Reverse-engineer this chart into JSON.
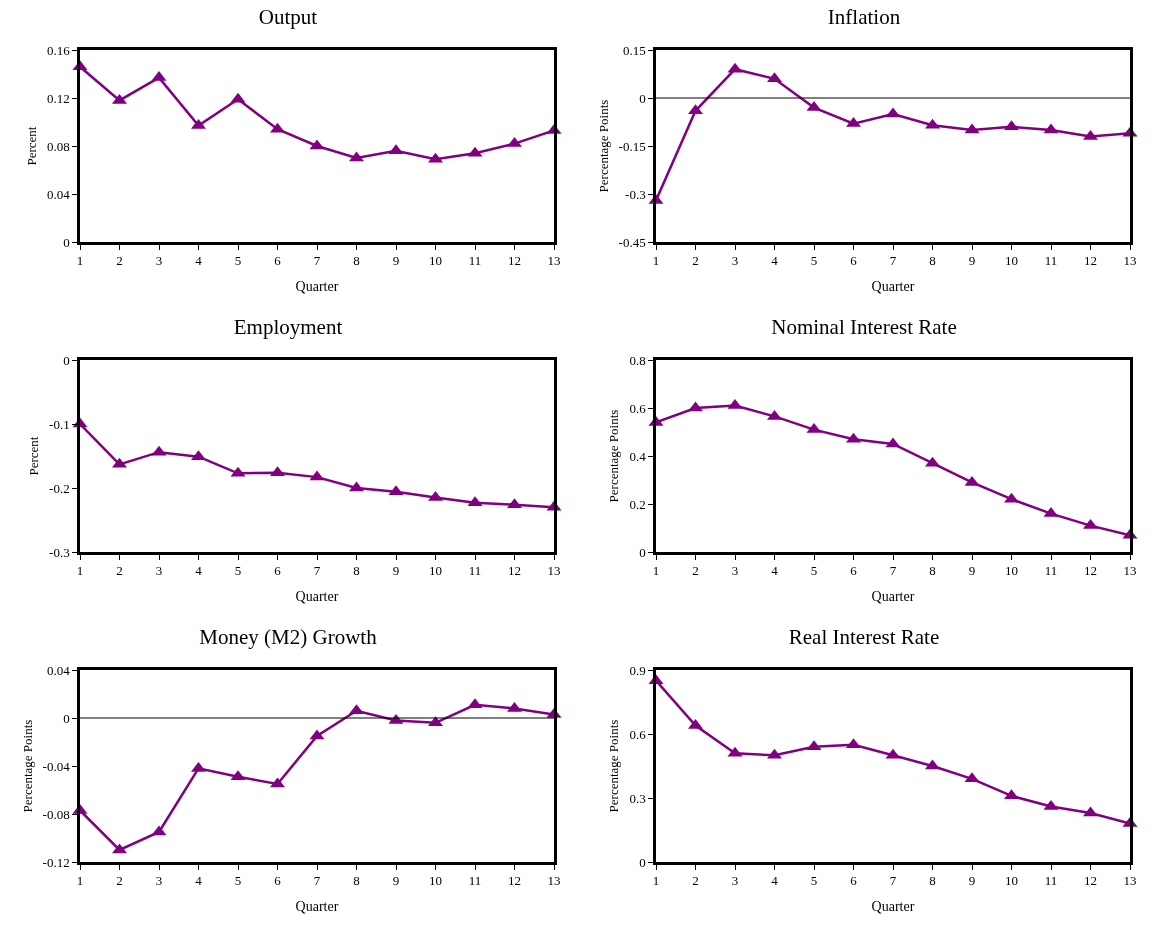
{
  "chart_data": [
    {
      "type": "line",
      "title": "Output",
      "xlabel": "Quarter",
      "ylabel": "Percent",
      "x": [
        1,
        2,
        3,
        4,
        5,
        6,
        7,
        8,
        9,
        10,
        11,
        12,
        13
      ],
      "xlim": [
        1,
        13
      ],
      "xticks": [
        1,
        2,
        3,
        4,
        5,
        6,
        7,
        8,
        9,
        10,
        11,
        12,
        13
      ],
      "ylim": [
        0,
        0.16
      ],
      "yticks": [
        0,
        0.04,
        0.08,
        0.12,
        0.16
      ],
      "grid": false,
      "marker": "triangle",
      "line_style": "solid",
      "series": [
        {
          "color": "#800080",
          "values": [
            0.146,
            0.118,
            0.137,
            0.097,
            0.119,
            0.094,
            0.08,
            0.07,
            0.076,
            0.069,
            0.074,
            0.082,
            0.093
          ]
        }
      ]
    },
    {
      "type": "line",
      "title": "Inflation",
      "xlabel": "Quarter",
      "ylabel": "Percentage Points",
      "x": [
        1,
        2,
        3,
        4,
        5,
        6,
        7,
        8,
        9,
        10,
        11,
        12,
        13
      ],
      "xlim": [
        1,
        13
      ],
      "xticks": [
        1,
        2,
        3,
        4,
        5,
        6,
        7,
        8,
        9,
        10,
        11,
        12,
        13
      ],
      "ylim": [
        -0.45,
        0.15
      ],
      "yticks": [
        -0.45,
        -0.3,
        -0.15,
        0,
        0.15
      ],
      "grid": false,
      "marker": "triangle",
      "line_style": "solid",
      "ref_lines": [
        {
          "axis": "y",
          "value": 0,
          "color": "#000000"
        }
      ],
      "series": [
        {
          "color": "#800080",
          "values": [
            -0.32,
            -0.04,
            0.09,
            0.06,
            -0.03,
            -0.08,
            -0.05,
            -0.085,
            -0.1,
            -0.09,
            -0.1,
            -0.12,
            -0.11
          ]
        }
      ]
    },
    {
      "type": "line",
      "title": "Employment",
      "xlabel": "Quarter",
      "ylabel": "Percent",
      "x": [
        1,
        2,
        3,
        4,
        5,
        6,
        7,
        8,
        9,
        10,
        11,
        12,
        13
      ],
      "xlim": [
        1,
        13
      ],
      "xticks": [
        1,
        2,
        3,
        4,
        5,
        6,
        7,
        8,
        9,
        10,
        11,
        12,
        13
      ],
      "ylim": [
        -0.3,
        0
      ],
      "yticks": [
        -0.3,
        -0.2,
        -0.1,
        0
      ],
      "grid": false,
      "marker": "triangle",
      "line_style": "solid",
      "series": [
        {
          "color": "#800080",
          "values": [
            -0.1,
            -0.163,
            -0.144,
            -0.151,
            -0.177,
            -0.176,
            -0.183,
            -0.2,
            -0.206,
            -0.215,
            -0.223,
            -0.226,
            -0.23
          ]
        }
      ]
    },
    {
      "type": "line",
      "title": "Nominal Interest Rate",
      "xlabel": "Quarter",
      "ylabel": "Percentage Points",
      "x": [
        1,
        2,
        3,
        4,
        5,
        6,
        7,
        8,
        9,
        10,
        11,
        12,
        13
      ],
      "xlim": [
        1,
        13
      ],
      "xticks": [
        1,
        2,
        3,
        4,
        5,
        6,
        7,
        8,
        9,
        10,
        11,
        12,
        13
      ],
      "ylim": [
        0,
        0.8
      ],
      "yticks": [
        0,
        0.2,
        0.4,
        0.6,
        0.8
      ],
      "grid": false,
      "marker": "triangle",
      "line_style": "solid",
      "series": [
        {
          "color": "#800080",
          "values": [
            0.54,
            0.6,
            0.61,
            0.565,
            0.51,
            0.47,
            0.45,
            0.37,
            0.29,
            0.22,
            0.16,
            0.11,
            0.07
          ]
        }
      ]
    },
    {
      "type": "line",
      "title": "Money (M2) Growth",
      "xlabel": "Quarter",
      "ylabel": "Percentage Points",
      "x": [
        1,
        2,
        3,
        4,
        5,
        6,
        7,
        8,
        9,
        10,
        11,
        12,
        13
      ],
      "xlim": [
        1,
        13
      ],
      "xticks": [
        1,
        2,
        3,
        4,
        5,
        6,
        7,
        8,
        9,
        10,
        11,
        12,
        13
      ],
      "ylim": [
        -0.12,
        0.04
      ],
      "yticks": [
        -0.12,
        -0.08,
        -0.04,
        0,
        0.04
      ],
      "grid": false,
      "marker": "triangle",
      "line_style": "solid",
      "ref_lines": [
        {
          "axis": "y",
          "value": 0,
          "color": "#000000"
        }
      ],
      "series": [
        {
          "color": "#800080",
          "values": [
            -0.077,
            -0.11,
            -0.095,
            -0.042,
            -0.049,
            -0.055,
            -0.015,
            0.006,
            -0.002,
            -0.004,
            0.011,
            0.008,
            0.003
          ]
        }
      ]
    },
    {
      "type": "line",
      "title": "Real Interest Rate",
      "xlabel": "Quarter",
      "ylabel": "Percentage Points",
      "x": [
        1,
        2,
        3,
        4,
        5,
        6,
        7,
        8,
        9,
        10,
        11,
        12,
        13
      ],
      "xlim": [
        1,
        13
      ],
      "xticks": [
        1,
        2,
        3,
        4,
        5,
        6,
        7,
        8,
        9,
        10,
        11,
        12,
        13
      ],
      "ylim": [
        0,
        0.9
      ],
      "yticks": [
        0,
        0.3,
        0.6,
        0.9
      ],
      "grid": false,
      "marker": "triangle",
      "line_style": "solid",
      "series": [
        {
          "color": "#800080",
          "values": [
            0.85,
            0.64,
            0.51,
            0.5,
            0.54,
            0.55,
            0.5,
            0.45,
            0.39,
            0.31,
            0.26,
            0.23,
            0.18
          ]
        }
      ]
    }
  ]
}
